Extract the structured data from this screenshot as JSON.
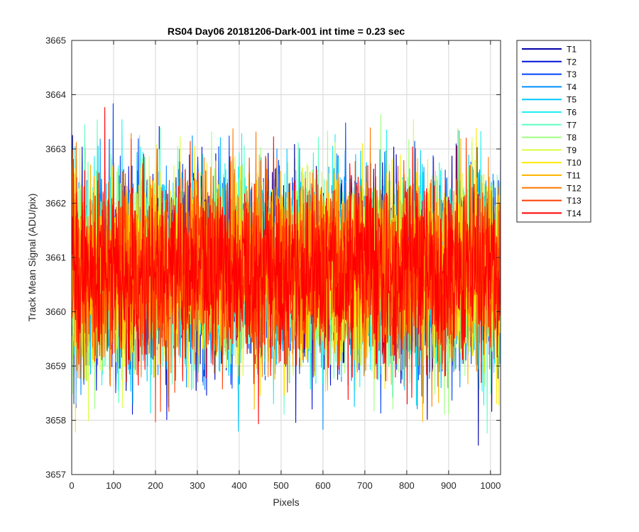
{
  "chart_data": {
    "type": "line",
    "title": "RS04 Day06 20181206-Dark-001 int time = 0.23 sec",
    "xlabel": "Pixels",
    "ylabel": "Track Mean Signal (ADU/pix)",
    "xlim": [
      0,
      1024
    ],
    "ylim": [
      3657,
      3665
    ],
    "xticks": [
      "0",
      "100",
      "200",
      "300",
      "400",
      "500",
      "600",
      "700",
      "800",
      "900",
      "1000"
    ],
    "yticks": [
      "3657",
      "3658",
      "3659",
      "3660",
      "3661",
      "3662",
      "3663",
      "3664",
      "3665"
    ],
    "grid": true,
    "legend_position": "outside-top-right",
    "points_per_series": 1024,
    "series_mean": 3660.75,
    "series_std": 0.85,
    "series": [
      {
        "name": "T1",
        "color": "#0000a8"
      },
      {
        "name": "T2",
        "color": "#0014d8"
      },
      {
        "name": "T3",
        "color": "#0044ff"
      },
      {
        "name": "T4",
        "color": "#0090ff"
      },
      {
        "name": "T5",
        "color": "#00c8ff"
      },
      {
        "name": "T6",
        "color": "#20f0f0"
      },
      {
        "name": "T7",
        "color": "#60ffc0"
      },
      {
        "name": "T8",
        "color": "#a0ff80"
      },
      {
        "name": "T9",
        "color": "#d8ff40"
      },
      {
        "name": "T10",
        "color": "#ffe800"
      },
      {
        "name": "T11",
        "color": "#ffb400"
      },
      {
        "name": "T12",
        "color": "#ff7800"
      },
      {
        "name": "T13",
        "color": "#ff3c00"
      },
      {
        "name": "T14",
        "color": "#ff0000"
      }
    ]
  }
}
